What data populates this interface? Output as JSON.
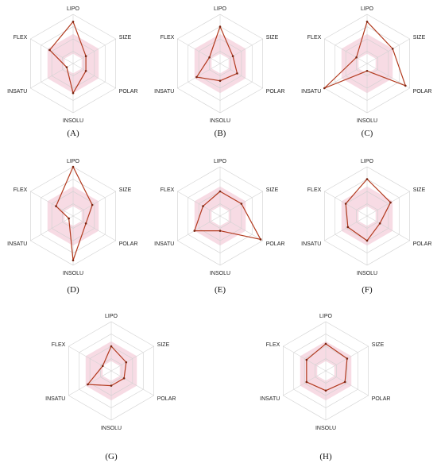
{
  "colors": {
    "profile_line": "#b23a1e",
    "optimal_range_fill": "#f7dbe4",
    "grid": "#cfcfcf"
  },
  "chart_data": [
    {
      "type": "radar",
      "panel_label": "A",
      "axes": [
        "LIPO",
        "SIZE",
        "POLAR",
        "INSOLU",
        "INSATU",
        "FLEX"
      ],
      "values": [
        0.85,
        0.3,
        0.3,
        0.6,
        0.15,
        0.55
      ],
      "optimal_range": [
        0.2,
        0.6
      ],
      "grid_levels": 4,
      "max": 1.0
    },
    {
      "type": "radar",
      "panel_label": "B",
      "axes": [
        "LIPO",
        "SIZE",
        "POLAR",
        "INSOLU",
        "INSATU",
        "FLEX"
      ],
      "values": [
        0.75,
        0.3,
        0.4,
        0.35,
        0.55,
        0.25
      ],
      "optimal_range": [
        0.2,
        0.6
      ],
      "grid_levels": 4,
      "max": 1.0
    },
    {
      "type": "radar",
      "panel_label": "C",
      "axes": [
        "LIPO",
        "SIZE",
        "POLAR",
        "INSOLU",
        "INSATU",
        "FLEX"
      ],
      "values": [
        0.85,
        0.6,
        0.9,
        0.15,
        1.0,
        0.25
      ],
      "optimal_range": [
        0.2,
        0.6
      ],
      "grid_levels": 4,
      "max": 1.0
    },
    {
      "type": "radar",
      "panel_label": "D",
      "axes": [
        "LIPO",
        "SIZE",
        "POLAR",
        "INSOLU",
        "INSATU",
        "FLEX"
      ],
      "values": [
        1.0,
        0.45,
        0.3,
        0.9,
        0.1,
        0.4
      ],
      "optimal_range": [
        0.2,
        0.6
      ],
      "grid_levels": 4,
      "max": 1.0
    },
    {
      "type": "radar",
      "panel_label": "E",
      "axes": [
        "LIPO",
        "SIZE",
        "POLAR",
        "INSOLU",
        "INSATU",
        "FLEX"
      ],
      "values": [
        0.5,
        0.5,
        0.95,
        0.3,
        0.6,
        0.4
      ],
      "optimal_range": [
        0.2,
        0.6
      ],
      "grid_levels": 4,
      "max": 1.0
    },
    {
      "type": "radar",
      "panel_label": "F",
      "axes": [
        "LIPO",
        "SIZE",
        "POLAR",
        "INSOLU",
        "INSATU",
        "FLEX"
      ],
      "values": [
        0.75,
        0.55,
        0.3,
        0.5,
        0.45,
        0.5
      ],
      "optimal_range": [
        0.2,
        0.6
      ],
      "grid_levels": 4,
      "max": 1.0
    },
    {
      "type": "radar",
      "panel_label": "G",
      "axes": [
        "LIPO",
        "SIZE",
        "POLAR",
        "INSOLU",
        "INSATU",
        "FLEX"
      ],
      "values": [
        0.5,
        0.35,
        0.3,
        0.3,
        0.55,
        0.2
      ],
      "optimal_range": [
        0.2,
        0.6
      ],
      "grid_levels": 4,
      "max": 1.0
    },
    {
      "type": "radar",
      "panel_label": "H",
      "axes": [
        "LIPO",
        "SIZE",
        "POLAR",
        "INSOLU",
        "INSATU",
        "FLEX"
      ],
      "values": [
        0.55,
        0.5,
        0.45,
        0.4,
        0.45,
        0.45
      ],
      "optimal_range": [
        0.2,
        0.6
      ],
      "grid_levels": 4,
      "max": 1.0
    }
  ]
}
